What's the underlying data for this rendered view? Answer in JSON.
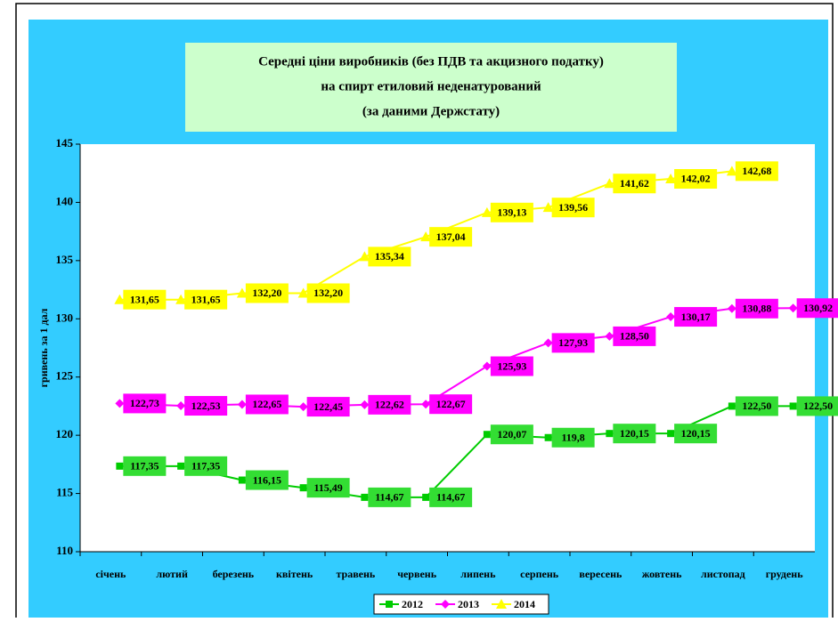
{
  "chart_data": {
    "type": "line",
    "title": [
      "Середні ціни виробників (без ПДВ та акцизного податку)",
      "на спирт  етиловий  неденатурований",
      "(за  даними  Держстату)"
    ],
    "y_label": "гривень за 1 дал",
    "categories": [
      "січень",
      "лютий",
      "березень",
      "квітень",
      "травень",
      "червень",
      "липень",
      "серпень",
      "вересень",
      "жовтень",
      "листопад",
      "грудень"
    ],
    "ylim": [
      110,
      145
    ],
    "yticks": [
      110,
      115,
      120,
      125,
      130,
      135,
      140,
      145
    ],
    "legend": "bottom",
    "series": [
      {
        "name": "2012",
        "color": "#00cc00",
        "label_color": "#33dd33",
        "marker": "square",
        "values": [
          117.35,
          117.35,
          116.15,
          115.49,
          114.67,
          114.67,
          120.07,
          119.8,
          120.15,
          120.15,
          122.5,
          122.5
        ],
        "value_labels": [
          "117,35",
          "117,35",
          "116,15",
          "115,49",
          "114,67",
          "114,67",
          "120,07",
          "119,8",
          "120,15",
          "120,15",
          "122,50",
          "122,50"
        ]
      },
      {
        "name": "2013",
        "color": "#ff00ff",
        "label_color": "#ff00ff",
        "marker": "diamond",
        "values": [
          122.73,
          122.53,
          122.65,
          122.45,
          122.62,
          122.67,
          125.93,
          127.93,
          128.5,
          130.17,
          130.88,
          130.92
        ],
        "value_labels": [
          "122,73",
          "122,53",
          "122,65",
          "122,45",
          "122,62",
          "122,67",
          "125,93",
          "127,93",
          "128,50",
          "130,17",
          "130,88",
          "130,92"
        ]
      },
      {
        "name": "2014",
        "color": "#ffff00",
        "label_color": "#ffff00",
        "marker": "triangle",
        "values": [
          131.65,
          131.65,
          132.2,
          132.2,
          135.34,
          137.04,
          139.13,
          139.56,
          141.62,
          142.02,
          142.68,
          null
        ],
        "value_labels": [
          "131,65",
          "131,65",
          "132,20",
          "132,20",
          "135,34",
          "137,04",
          "139,13",
          "139,56",
          "141,62",
          "142,02",
          "142,68",
          null
        ]
      }
    ]
  }
}
